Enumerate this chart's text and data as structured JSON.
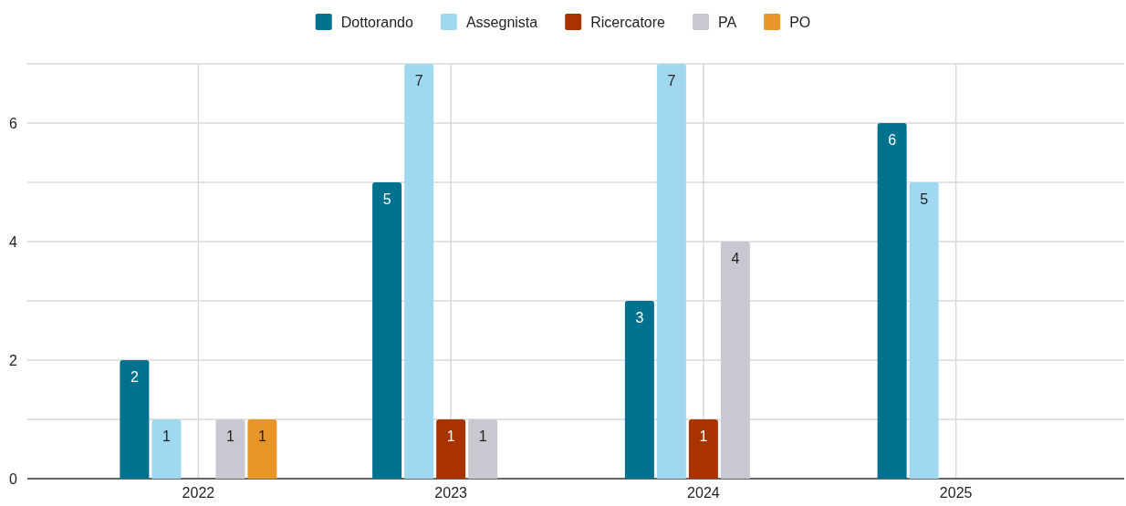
{
  "chart_data": {
    "type": "bar",
    "categories": [
      "2022",
      "2023",
      "2024",
      "2025"
    ],
    "series": [
      {
        "name": "Dottorando",
        "color": "#00718f",
        "values": [
          2,
          5,
          3,
          6
        ]
      },
      {
        "name": "Assegnista",
        "color": "#a0d8f0",
        "values": [
          1,
          7,
          7,
          5
        ]
      },
      {
        "name": "Ricercatore",
        "color": "#a83300",
        "values": [
          null,
          1,
          1,
          null
        ]
      },
      {
        "name": "PA",
        "color": "#c8c8d0",
        "values": [
          1,
          1,
          4,
          null
        ]
      },
      {
        "name": "PO",
        "color": "#e8952a",
        "values": [
          1,
          null,
          null,
          null
        ]
      }
    ],
    "ylim": [
      0,
      7
    ],
    "yticks": [
      0,
      {
        "value": 1,
        "label": null
      },
      2,
      {
        "value": 3,
        "label": null
      },
      4,
      {
        "value": 5,
        "label": null
      },
      6,
      {
        "value": 7,
        "label": null
      }
    ],
    "grid": true,
    "legend": "top",
    "data_labels": true
  }
}
